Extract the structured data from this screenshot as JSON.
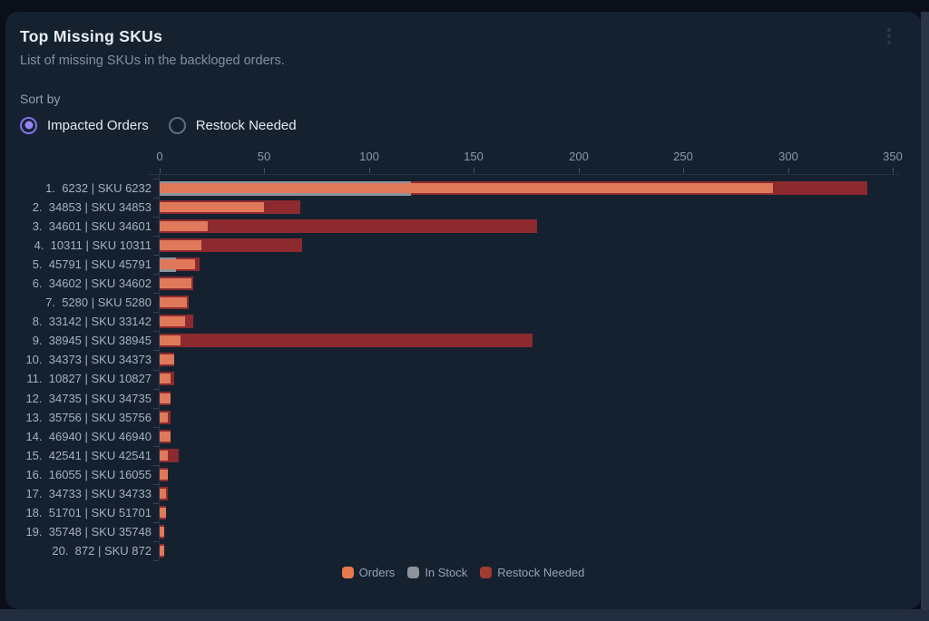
{
  "card": {
    "title": "Top Missing SKUs",
    "subtitle": "List of missing SKUs in the backloged orders.",
    "menu_icon": "kebab-vertical"
  },
  "sort": {
    "label": "Sort by",
    "accent_color": "#8273ea",
    "options": [
      {
        "label": "Impacted Orders",
        "selected": true
      },
      {
        "label": "Restock Needed",
        "selected": false
      }
    ]
  },
  "chart_data": {
    "type": "bar",
    "orientation": "horizontal",
    "title": "Top Missing SKUs",
    "x_axis": {
      "min": 0,
      "max": 350,
      "ticks": [
        0,
        50,
        100,
        150,
        200,
        250,
        300,
        350
      ]
    },
    "legend": [
      {
        "name": "Orders",
        "color": "#e8794f"
      },
      {
        "name": "In Stock",
        "color": "#8d939c"
      },
      {
        "name": "Restock Needed",
        "color": "#a23a30"
      }
    ],
    "colors": {
      "orders": "#e0795a",
      "in_stock": "#8d939c",
      "restock": "#8c2a30"
    },
    "rows": [
      {
        "label": "1.  6232 | SKU 6232",
        "orders": 293,
        "in_stock": 120,
        "restock_needed": 338
      },
      {
        "label": "2.  34853 | SKU 34853",
        "orders": 50,
        "in_stock": 0,
        "restock_needed": 67
      },
      {
        "label": "3.  34601 | SKU 34601",
        "orders": 23,
        "in_stock": 0,
        "restock_needed": 180
      },
      {
        "label": "4.  10311 | SKU 10311",
        "orders": 20,
        "in_stock": 0,
        "restock_needed": 68
      },
      {
        "label": "5.  45791 | SKU 45791",
        "orders": 17,
        "in_stock": 8,
        "restock_needed": 19
      },
      {
        "label": "6.  34602 | SKU 34602",
        "orders": 15,
        "in_stock": 0,
        "restock_needed": 16
      },
      {
        "label": "7.  5280 | SKU 5280",
        "orders": 13,
        "in_stock": 0,
        "restock_needed": 14
      },
      {
        "label": "8.  33142 | SKU 33142",
        "orders": 12,
        "in_stock": 0,
        "restock_needed": 16
      },
      {
        "label": "9.  38945 | SKU 38945",
        "orders": 10,
        "in_stock": 0,
        "restock_needed": 178
      },
      {
        "label": "10.  34373 | SKU 34373",
        "orders": 7,
        "in_stock": 0,
        "restock_needed": 7
      },
      {
        "label": "11.  10827 | SKU 10827",
        "orders": 5,
        "in_stock": 0,
        "restock_needed": 7
      },
      {
        "label": "12.  34735 | SKU 34735",
        "orders": 5,
        "in_stock": 0,
        "restock_needed": 5
      },
      {
        "label": "13.  35756 | SKU 35756",
        "orders": 4,
        "in_stock": 0,
        "restock_needed": 5
      },
      {
        "label": "14.  46940 | SKU 46940",
        "orders": 5,
        "in_stock": 0,
        "restock_needed": 5
      },
      {
        "label": "15.  42541 | SKU 42541",
        "orders": 4,
        "in_stock": 0,
        "restock_needed": 9
      },
      {
        "label": "16.  16055 | SKU 16055",
        "orders": 4,
        "in_stock": 0,
        "restock_needed": 4
      },
      {
        "label": "17.  34733 | SKU 34733",
        "orders": 3,
        "in_stock": 0,
        "restock_needed": 4
      },
      {
        "label": "18.  51701 | SKU 51701",
        "orders": 3,
        "in_stock": 0,
        "restock_needed": 3
      },
      {
        "label": "19.  35748 | SKU 35748",
        "orders": 2,
        "in_stock": 0,
        "restock_needed": 2
      },
      {
        "label": "20.  872 | SKU 872",
        "orders": 2,
        "in_stock": 0,
        "restock_needed": 2
      }
    ]
  }
}
